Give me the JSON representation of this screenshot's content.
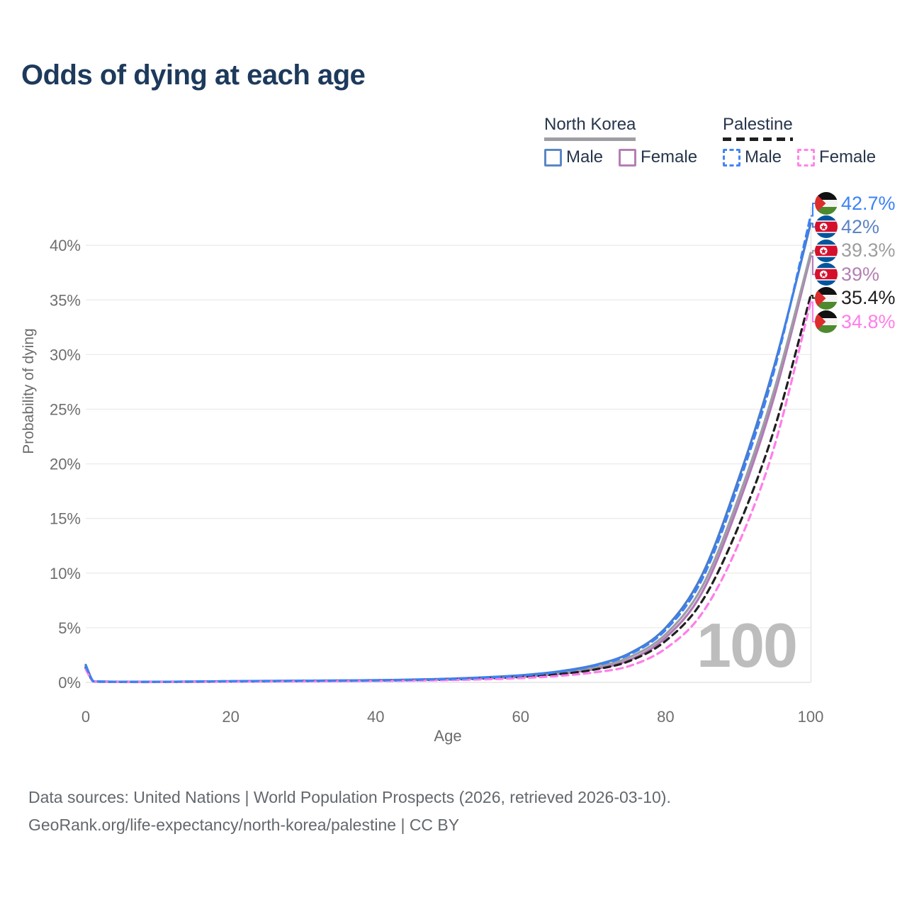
{
  "title": "Odds of dying at each age",
  "watermark": "100",
  "axis": {
    "x_label": "Age",
    "y_label": "Probability of dying"
  },
  "legend": {
    "groups": [
      {
        "country": "North Korea",
        "line_style": "solid",
        "underline_color": "#9e9ea3",
        "items": [
          {
            "label": "Male",
            "color": "#5b87c5",
            "dashed": false
          },
          {
            "label": "Female",
            "color": "#b57fb3",
            "dashed": false
          }
        ]
      },
      {
        "country": "Palestine",
        "line_style": "dashed",
        "underline_color": "#1f1f1f",
        "items": [
          {
            "label": "Male",
            "color": "#4285f4",
            "dashed": true
          },
          {
            "label": "Female",
            "color": "#ff85e6",
            "dashed": true
          }
        ]
      }
    ]
  },
  "footer": {
    "line1": "Data sources: United Nations | World Population Prospects (2026, retrieved 2026-03-10).",
    "line2": "GeoRank.org/life-expectancy/north-korea/palestine | CC BY"
  },
  "chart_data": {
    "type": "line",
    "title": "Odds of dying at each age",
    "xlabel": "Age",
    "ylabel": "Probability of dying",
    "xlim": [
      0,
      100
    ],
    "ylim_pct": [
      0,
      44
    ],
    "x_ticks": [
      0,
      20,
      40,
      60,
      80,
      100
    ],
    "y_ticks_pct": [
      0,
      5,
      10,
      15,
      20,
      25,
      30,
      35,
      40
    ],
    "grid": "horizontal",
    "legend_position": "top-right",
    "ages": [
      0,
      1,
      2,
      5,
      10,
      15,
      20,
      25,
      30,
      35,
      40,
      45,
      50,
      55,
      60,
      65,
      70,
      75,
      80,
      85,
      90,
      95,
      100
    ],
    "series": [
      {
        "name": "North Korea Female",
        "country": "north-korea",
        "sex": "female",
        "color": "#b279b9",
        "label_color": "#b57fb3",
        "dashed": false,
        "end_label": "39%",
        "values_pct": [
          1.3,
          0.1,
          0.06,
          0.04,
          0.04,
          0.06,
          0.08,
          0.09,
          0.11,
          0.13,
          0.16,
          0.2,
          0.26,
          0.36,
          0.5,
          0.76,
          1.2,
          2.05,
          4.1,
          8.2,
          16.2,
          26.2,
          39
        ]
      },
      {
        "name": "North Korea Both sexes",
        "country": "north-korea",
        "sex": "both",
        "color": "#9e9ea3",
        "label_color": "#9e9e9e",
        "dashed": false,
        "end_label": "39.3%",
        "values_pct": [
          1.45,
          0.11,
          0.07,
          0.04,
          0.04,
          0.07,
          0.09,
          0.11,
          0.13,
          0.15,
          0.18,
          0.22,
          0.29,
          0.41,
          0.57,
          0.86,
          1.35,
          2.3,
          4.4,
          8.7,
          16.8,
          26.8,
          39.3
        ]
      },
      {
        "name": "North Korea Male",
        "country": "north-korea",
        "sex": "male",
        "color": "#4a7cc7",
        "label_color": "#5b84c4",
        "dashed": false,
        "end_label": "42%",
        "values_pct": [
          1.6,
          0.12,
          0.08,
          0.05,
          0.05,
          0.08,
          0.11,
          0.13,
          0.15,
          0.17,
          0.2,
          0.25,
          0.33,
          0.46,
          0.65,
          0.98,
          1.55,
          2.65,
          5,
          9.8,
          18.5,
          29,
          42
        ]
      },
      {
        "name": "Palestine Both sexes",
        "country": "palestine",
        "sex": "both",
        "color": "#1f1f1f",
        "label_color": "#1f1f1f",
        "dashed": true,
        "end_label": "35.4%",
        "values_pct": [
          1.35,
          0.1,
          0.06,
          0.04,
          0.04,
          0.06,
          0.08,
          0.1,
          0.12,
          0.14,
          0.16,
          0.2,
          0.26,
          0.36,
          0.5,
          0.74,
          1.15,
          1.95,
          3.8,
          7.4,
          14.2,
          23.2,
          35.4
        ]
      },
      {
        "name": "Palestine Female",
        "country": "palestine",
        "sex": "female",
        "color": "#ff7de9",
        "label_color": "#ff7de9",
        "dashed": true,
        "end_label": "34.8%",
        "values_pct": [
          1.2,
          0.09,
          0.05,
          0.03,
          0.03,
          0.05,
          0.06,
          0.08,
          0.09,
          0.11,
          0.13,
          0.16,
          0.21,
          0.28,
          0.39,
          0.58,
          0.9,
          1.5,
          3.1,
          6.3,
          12.6,
          21.6,
          34.8
        ]
      },
      {
        "name": "Palestine Male",
        "country": "palestine",
        "sex": "male",
        "color": "#3b82f6",
        "label_color": "#3b82f6",
        "dashed": true,
        "end_label": "42.7%",
        "values_pct": [
          1.5,
          0.11,
          0.07,
          0.05,
          0.05,
          0.08,
          0.11,
          0.13,
          0.15,
          0.17,
          0.19,
          0.24,
          0.31,
          0.44,
          0.62,
          0.94,
          1.5,
          2.55,
          4.8,
          9.4,
          18,
          28.6,
          42.7
        ]
      }
    ]
  }
}
